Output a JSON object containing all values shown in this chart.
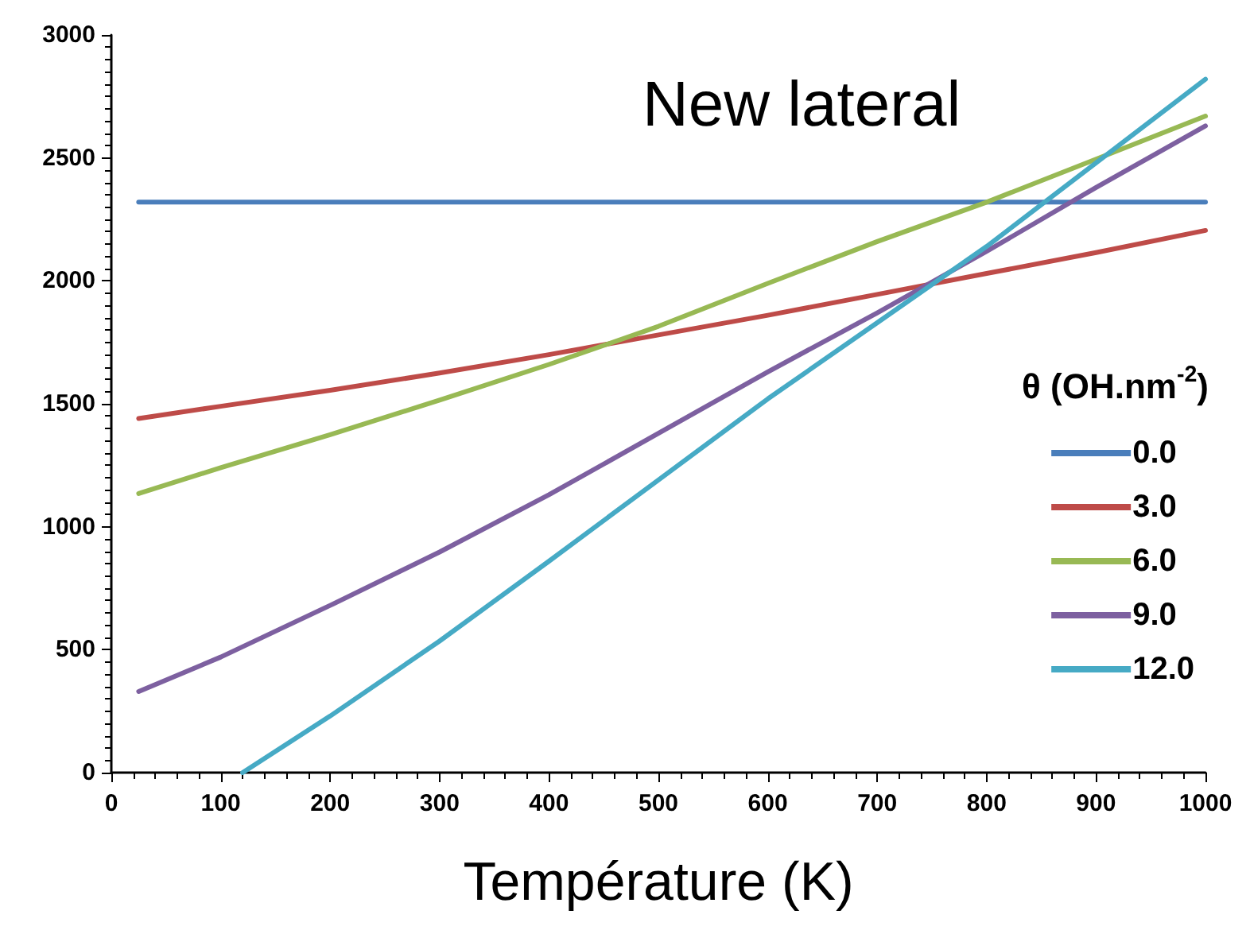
{
  "chart_data": {
    "type": "line",
    "title": "New lateral",
    "xlabel": "Température (K)",
    "legend_title": "θ (OH.nm$^{-2}$)",
    "legend": "right",
    "grid": false,
    "marker": "none",
    "line_style": "solid",
    "xlim": [
      0,
      1000
    ],
    "xticks": [
      0,
      100,
      200,
      300,
      400,
      500,
      600,
      700,
      800,
      900,
      1000
    ],
    "ylim": [
      0,
      3000
    ],
    "yticks": [
      0,
      500,
      1000,
      1500,
      2000,
      2500,
      3000
    ],
    "series": [
      {
        "name": "0.0",
        "color": "#4a7ebb",
        "x": [
          25,
          1000
        ],
        "values": [
          2320,
          2320
        ]
      },
      {
        "name": "3.0",
        "color": "#be4b48",
        "x": [
          25,
          100,
          200,
          300,
          400,
          500,
          600,
          700,
          800,
          900,
          1000
        ],
        "values": [
          1440,
          1490,
          1555,
          1625,
          1700,
          1780,
          1860,
          1945,
          2030,
          2115,
          2205
        ]
      },
      {
        "name": "6.0",
        "color": "#98b954",
        "x": [
          25,
          100,
          200,
          300,
          400,
          500,
          600,
          700,
          800,
          900,
          1000
        ],
        "values": [
          1135,
          1240,
          1374,
          1515,
          1660,
          1815,
          1990,
          2160,
          2320,
          2495,
          2670
        ]
      },
      {
        "name": "9.0",
        "color": "#7d60a0",
        "x": [
          25,
          100,
          200,
          300,
          400,
          500,
          600,
          700,
          800,
          900,
          1000
        ],
        "values": [
          330,
          470,
          680,
          897,
          1130,
          1380,
          1630,
          1870,
          2120,
          2380,
          2630
        ]
      },
      {
        "name": "12.0",
        "color": "#46aac5",
        "x": [
          120,
          200,
          300,
          400,
          500,
          600,
          700,
          800,
          900,
          1000
        ],
        "values": [
          0,
          230,
          535,
          860,
          1190,
          1520,
          1830,
          2140,
          2480,
          2820
        ]
      }
    ]
  }
}
